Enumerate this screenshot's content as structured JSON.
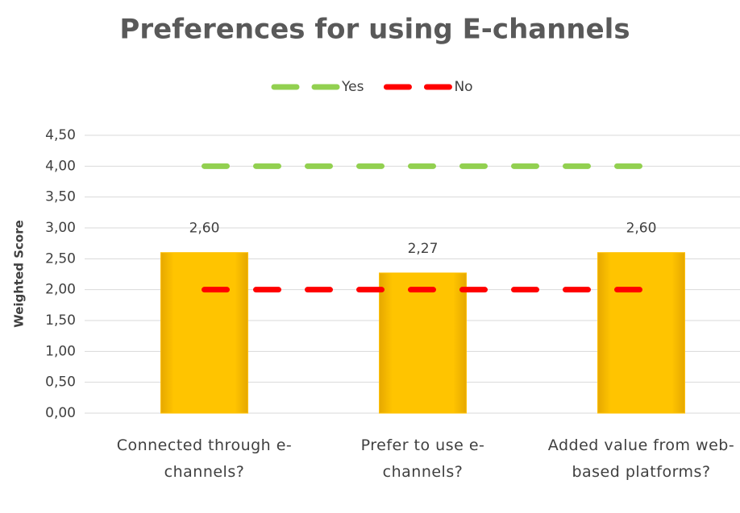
{
  "chart_data": {
    "type": "bar",
    "title": "Preferences for using  E-channels",
    "y_label": "Weighted Score",
    "categories": [
      "Connected through e-channels?",
      "Prefer to use e-channels?",
      "Added value from web-based platforms?"
    ],
    "values": [
      2.6,
      2.27,
      2.6
    ],
    "value_labels": [
      "2,60",
      "2,27",
      "2,60"
    ],
    "color": "#ffc000",
    "lines": [
      {
        "name": "Yes",
        "color": "#92d050",
        "values": [
          4,
          4,
          4
        ]
      },
      {
        "name": "No",
        "color": "#ff0000",
        "values": [
          2,
          2,
          2
        ]
      }
    ],
    "ylim": [
      0,
      4.5
    ],
    "yticks": [
      {
        "value": 0,
        "label": "0,00"
      },
      {
        "value": 0.5,
        "label": "0,50"
      },
      {
        "value": 1,
        "label": "1,00"
      },
      {
        "value": 1.5,
        "label": "1,50"
      },
      {
        "value": 2,
        "label": "2,00"
      },
      {
        "value": 2.5,
        "label": "2,50"
      },
      {
        "value": 3,
        "label": "3,00"
      },
      {
        "value": 3.5,
        "label": "3,50"
      },
      {
        "value": 4,
        "label": "4,00"
      },
      {
        "value": 4.5,
        "label": "4,50"
      }
    ],
    "grid": true,
    "legend": "top"
  }
}
